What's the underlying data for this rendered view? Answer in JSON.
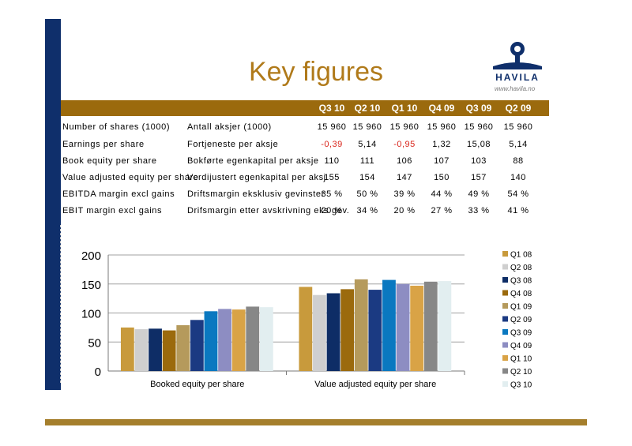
{
  "slide": {
    "title": "Key figures",
    "logo": {
      "brand": "HAVILA",
      "site": "www.havila.no"
    }
  },
  "table": {
    "quarters": [
      "Q3 10",
      "Q2 10",
      "Q1 10",
      "Q4 09",
      "Q3 09",
      "Q2 09"
    ],
    "rows": [
      {
        "en": "Number of shares (1000)",
        "no": "Antall aksjer (1000)",
        "values": [
          "15 960",
          "15 960",
          "15 960",
          "15 960",
          "15 960",
          "15 960"
        ]
      },
      {
        "en": "Earnings per share",
        "no": "Fortjeneste per aksje",
        "values": [
          "-0,39",
          "5,14",
          "-0,95",
          "1,32",
          "15,08",
          "5,14"
        ]
      },
      {
        "en": "Book equity per share",
        "no": "Bokførte egenkapital per aksje",
        "values": [
          "110",
          "111",
          "106",
          "107",
          "103",
          "88"
        ]
      },
      {
        "en": "Value adjusted equity per share",
        "no": "Verdijustert egenkapital per aksj",
        "values": [
          "155",
          "154",
          "147",
          "150",
          "157",
          "140"
        ]
      },
      {
        "en": "EBITDA margin excl gains",
        "no": "Driftsmargin eksklusiv gevinster",
        "values": [
          "35 %",
          "50 %",
          "39 %",
          "44 %",
          "49 %",
          "54 %"
        ]
      },
      {
        "en": "EBIT margin excl gains",
        "no": "Drifsmargin etter avskrivning eks gev.",
        "values": [
          "20 %",
          "34 %",
          "20 %",
          "27 %",
          "33 %",
          "41 %"
        ]
      }
    ]
  },
  "chart_data": {
    "type": "bar",
    "categories": [
      "Booked equity per share",
      "Value adjusted equity per share"
    ],
    "series": [
      {
        "name": "Q1 08",
        "values": [
          75,
          145
        ],
        "color": "#c89a3c"
      },
      {
        "name": "Q2 08",
        "values": [
          72,
          131
        ],
        "color": "#cfcfcf"
      },
      {
        "name": "Q3 08",
        "values": [
          73,
          134
        ],
        "color": "#0e2d66"
      },
      {
        "name": "Q4 08",
        "values": [
          70,
          141
        ],
        "color": "#9b6a0d"
      },
      {
        "name": "Q1 09",
        "values": [
          79,
          158
        ],
        "color": "#b59a5c"
      },
      {
        "name": "Q2 09",
        "values": [
          88,
          140
        ],
        "color": "#1b3a82"
      },
      {
        "name": "Q3 09",
        "values": [
          103,
          157
        ],
        "color": "#0a78c0"
      },
      {
        "name": "Q4 09",
        "values": [
          107,
          150
        ],
        "color": "#8d8dc2"
      },
      {
        "name": "Q1 10",
        "values": [
          106,
          147
        ],
        "color": "#d9a346"
      },
      {
        "name": "Q2 10",
        "values": [
          111,
          154
        ],
        "color": "#878787"
      },
      {
        "name": "Q3 10",
        "values": [
          110,
          155
        ],
        "color": "#e2eef0"
      }
    ],
    "ylim": [
      0,
      200
    ],
    "yticks": [
      0,
      50,
      100,
      150,
      200
    ],
    "grid": true,
    "legend": "right"
  }
}
